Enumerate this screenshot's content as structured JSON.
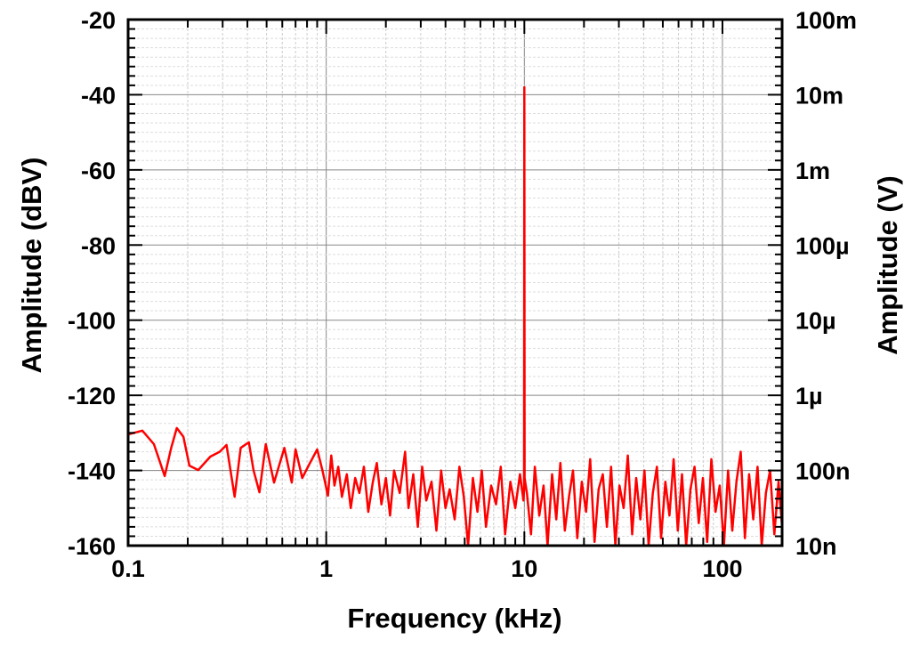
{
  "chart_data": {
    "type": "line",
    "xlabel": "Frequency (kHz)",
    "ylabel": "Amplitude (dBV)",
    "y2label": "Amplitude (V)",
    "xscale": "log",
    "xlim": [
      0.1,
      200
    ],
    "ylim": [
      -160,
      -20
    ],
    "x_ticks": [
      {
        "v": 0.1,
        "label": "0.1"
      },
      {
        "v": 1,
        "label": "1"
      },
      {
        "v": 10,
        "label": "10"
      },
      {
        "v": 100,
        "label": "100"
      }
    ],
    "y_ticks": [
      {
        "v": -20,
        "label": "-20"
      },
      {
        "v": -40,
        "label": "-40"
      },
      {
        "v": -60,
        "label": "-60"
      },
      {
        "v": -80,
        "label": "-80"
      },
      {
        "v": -100,
        "label": "-100"
      },
      {
        "v": -120,
        "label": "-120"
      },
      {
        "v": -140,
        "label": "-140"
      },
      {
        "v": -160,
        "label": "-160"
      }
    ],
    "y2_ticks": [
      {
        "v": -20,
        "label": "100m"
      },
      {
        "v": -40,
        "label": "10m"
      },
      {
        "v": -60,
        "label": "1m"
      },
      {
        "v": -80,
        "label": "100µ"
      },
      {
        "v": -100,
        "label": "10µ"
      },
      {
        "v": -120,
        "label": "1µ"
      },
      {
        "v": -140,
        "label": "100n"
      },
      {
        "v": -160,
        "label": "10n"
      }
    ],
    "grid": true,
    "series_color": "#ff0000",
    "series": [
      {
        "x": [
          0.1,
          0.118,
          0.135,
          0.153,
          0.165,
          0.176,
          0.19,
          0.204,
          0.226,
          0.26,
          0.29,
          0.314,
          0.345,
          0.37,
          0.407,
          0.43,
          0.46,
          0.495,
          0.545,
          0.615,
          0.67,
          0.7,
          0.757,
          0.82,
          0.9,
          0.96,
          1.02,
          1.06,
          1.1,
          1.15,
          1.2,
          1.27,
          1.33,
          1.4,
          1.47,
          1.55,
          1.63,
          1.72,
          1.8,
          1.9,
          2.0,
          2.1,
          2.2,
          2.35,
          2.5,
          2.6,
          2.75,
          2.9,
          3.05,
          3.2,
          3.4,
          3.6,
          3.8,
          4.0,
          4.2,
          4.45,
          4.7,
          4.95,
          5.2,
          5.5,
          5.8,
          6.1,
          6.4,
          6.8,
          7.2,
          7.6,
          8.0,
          8.5,
          9.0,
          9.5,
          9.9,
          9.97,
          10.0,
          10.03,
          10.3,
          10.8,
          11.3,
          11.9,
          12.5,
          13.1,
          13.8,
          14.5,
          15.2,
          16,
          16.8,
          17.6,
          18.5,
          19.5,
          20.5,
          21.5,
          22.6,
          23.7,
          24.9,
          26.1,
          27.4,
          28.8,
          30.2,
          31.7,
          33.3,
          35,
          36.7,
          38.5,
          40.4,
          42.4,
          44.5,
          46.7,
          49,
          51.5,
          54,
          56.7,
          59.5,
          62.5,
          65.6,
          68.9,
          72.3,
          75.9,
          79.7,
          83.7,
          87.9,
          92.3,
          96.9,
          101.7,
          106.8,
          112.1,
          117.7,
          123.6,
          129.8,
          136.3,
          143.1,
          150.3,
          157.8,
          165.7,
          174,
          182.7,
          191.8,
          200
        ],
        "y": [
          -130.4,
          -129.4,
          -133,
          -141.5,
          -134,
          -128.7,
          -131,
          -138.7,
          -139.9,
          -136.3,
          -135,
          -133.2,
          -147,
          -134,
          -132.5,
          -140,
          -145.8,
          -133,
          -143.2,
          -134,
          -143.2,
          -134.4,
          -142,
          -138.4,
          -134.4,
          -140.3,
          -146.7,
          -136,
          -144,
          -139,
          -147,
          -141,
          -150,
          -142,
          -146,
          -139,
          -151,
          -143,
          -138,
          -149,
          -142,
          -152,
          -140,
          -146,
          -135,
          -150,
          -141,
          -155,
          -139,
          -148,
          -143,
          -156,
          -140,
          -150,
          -145,
          -153,
          -139,
          -147,
          -160,
          -142,
          -151,
          -140,
          -155,
          -144,
          -149,
          -139,
          -157,
          -143,
          -150,
          -141,
          -148,
          -145,
          -38,
          -142,
          -146,
          -157,
          -139,
          -152,
          -144,
          -160,
          -141,
          -153,
          -138,
          -156,
          -147,
          -140,
          -158,
          -143,
          -151,
          -137,
          -159,
          -145,
          -141,
          -155,
          -139,
          -160,
          -144,
          -150,
          -136,
          -157,
          -142,
          -153,
          -140,
          -160,
          -146,
          -139,
          -158,
          -143,
          -152,
          -137,
          -156,
          -141,
          -160,
          -145,
          -139,
          -154,
          -142,
          -159,
          -137,
          -151,
          -144,
          -160,
          -140,
          -156,
          -143,
          -135,
          -158,
          -141,
          -153,
          -139,
          -160,
          -146,
          -140,
          -157,
          -143,
          -155
        ]
      }
    ]
  }
}
